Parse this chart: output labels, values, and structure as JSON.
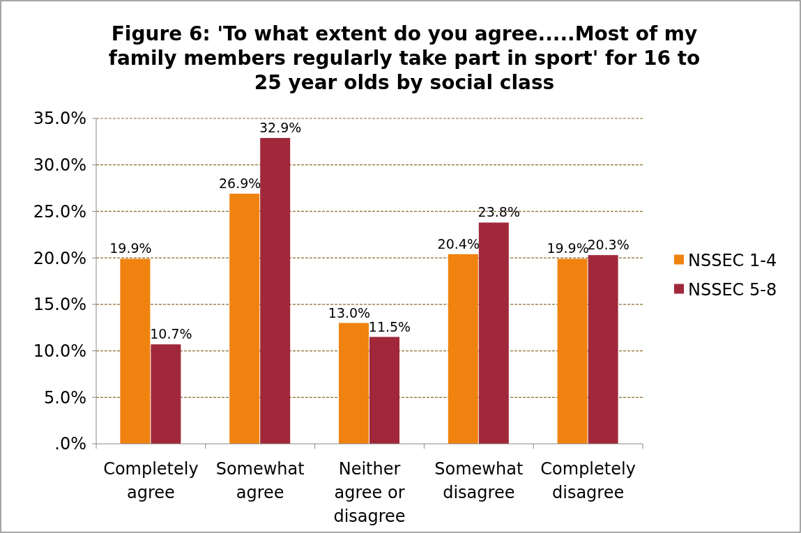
{
  "chart_data": {
    "type": "bar",
    "title": "Figure 6: 'To what extent do you agree.....Most of my family members regularly take part in sport' for 16 to 25 year olds by social class",
    "categories": [
      "Completely agree",
      "Somewhat agree",
      "Neither agree or disagree",
      "Somewhat disagree",
      "Completely disagree"
    ],
    "series": [
      {
        "name": "NSSEC 1-4",
        "color": "#f0820f",
        "values": [
          19.9,
          26.9,
          13.0,
          20.4,
          19.9
        ],
        "value_labels": [
          "19.9%",
          "26.9%",
          "13.0%",
          "20.4%",
          "19.9%"
        ]
      },
      {
        "name": "NSSEC 5-8",
        "color": "#a0283a",
        "values": [
          10.7,
          32.9,
          11.5,
          23.8,
          20.3
        ],
        "value_labels": [
          "10.7%",
          "32.9%",
          "11.5%",
          "23.8%",
          "20.3%"
        ]
      }
    ],
    "ylim": [
      0,
      35
    ],
    "yticks": [
      {
        "value": 0,
        "label": ".0%"
      },
      {
        "value": 5,
        "label": "5.0%"
      },
      {
        "value": 10,
        "label": "10.0%"
      },
      {
        "value": 15,
        "label": "15.0%"
      },
      {
        "value": 20,
        "label": "20.0%"
      },
      {
        "value": 25,
        "label": "25.0%"
      },
      {
        "value": 30,
        "label": "30.0%"
      },
      {
        "value": 35,
        "label": "35.0%"
      }
    ],
    "grid": "y",
    "legend": "right"
  }
}
